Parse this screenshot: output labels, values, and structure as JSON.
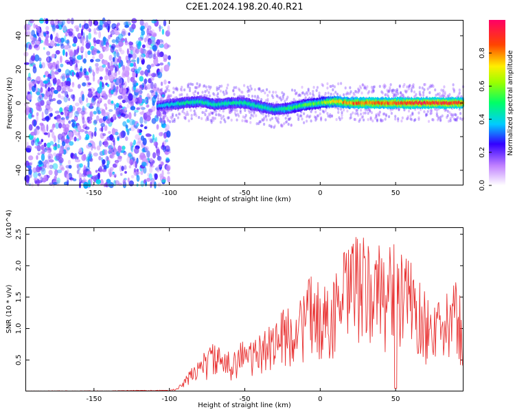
{
  "title": "C2E1.2024.198.20.40.R21",
  "chart_data": [
    {
      "type": "heatmap",
      "xlabel": "Height of straight line (km)",
      "ylabel": "Frequency (Hz)",
      "xlim": [
        -195,
        95
      ],
      "ylim": [
        -49,
        49
      ],
      "xticks": [
        -150,
        -100,
        -50,
        0,
        50
      ],
      "yticks": [
        -40,
        -20,
        0,
        20,
        40
      ],
      "colorbar": {
        "label": "Normalized spectral amplitude",
        "range": [
          0,
          1
        ],
        "ticks": [
          0.0,
          0.2,
          0.4,
          0.6,
          0.8
        ],
        "tick_labels": [
          "0.0",
          "0.2",
          "0.4",
          "0.6",
          "0.8"
        ]
      },
      "noise_region_x": [
        -195,
        -100
      ],
      "ridge": {
        "x": [
          -108,
          -100,
          -90,
          -80,
          -70,
          -60,
          -50,
          -40,
          -30,
          -20,
          -10,
          0,
          10,
          20,
          30,
          40,
          50,
          60,
          70,
          80,
          90,
          95
        ],
        "frequency": [
          -2,
          -1,
          0,
          1,
          -1,
          0,
          0,
          -2,
          -4,
          -3,
          -1,
          0,
          1,
          0,
          0,
          0,
          0,
          0,
          0,
          0,
          0,
          0
        ],
        "peak_amplitude": [
          0.35,
          0.4,
          0.45,
          0.45,
          0.45,
          0.45,
          0.45,
          0.45,
          0.45,
          0.5,
          0.55,
          0.55,
          0.75,
          0.8,
          0.85,
          0.85,
          0.85,
          0.9,
          0.9,
          0.9,
          0.88,
          0.85
        ]
      }
    },
    {
      "type": "line",
      "xlabel": "Height of straight line (km)",
      "ylabel": "SNR (10 * v/v)",
      "scale_label": "(x10^4)",
      "xlim": [
        -195,
        95
      ],
      "ylim": [
        0,
        2.6
      ],
      "xticks": [
        -150,
        -100,
        -50,
        0,
        50
      ],
      "yticks": [
        0.5,
        1.0,
        1.5,
        2.0,
        2.5
      ],
      "ytick_labels": [
        "0.5",
        "1.0",
        "1.5",
        "2.0",
        "2.5"
      ],
      "color": "#e83030",
      "series": [
        {
          "x": [
            -195,
            -180,
            -160,
            -140,
            -120,
            -100,
            -95,
            -90,
            -85,
            -80,
            -75,
            -70,
            -65,
            -60,
            -55,
            -50,
            -45,
            -40,
            -35,
            -30,
            -25,
            -20,
            -15,
            -10,
            -5,
            0,
            5,
            10,
            15,
            20,
            25,
            30,
            35,
            40,
            45,
            50,
            55,
            60,
            65,
            70,
            75,
            80,
            85,
            90,
            95
          ],
          "y": [
            0.01,
            0.01,
            0.01,
            0.01,
            0.02,
            0.02,
            0.05,
            0.2,
            0.4,
            0.6,
            0.65,
            0.85,
            0.6,
            0.65,
            0.8,
            0.85,
            0.8,
            0.9,
            1.1,
            1.2,
            1.3,
            1.4,
            1.4,
            1.7,
            1.9,
            1.7,
            1.7,
            1.9,
            2.2,
            2.4,
            2.6,
            2.4,
            2.3,
            2.4,
            2.4,
            2.5,
            2.1,
            2.2,
            1.8,
            1.6,
            1.5,
            1.4,
            1.6,
            1.8,
            1.3
          ]
        }
      ]
    }
  ]
}
